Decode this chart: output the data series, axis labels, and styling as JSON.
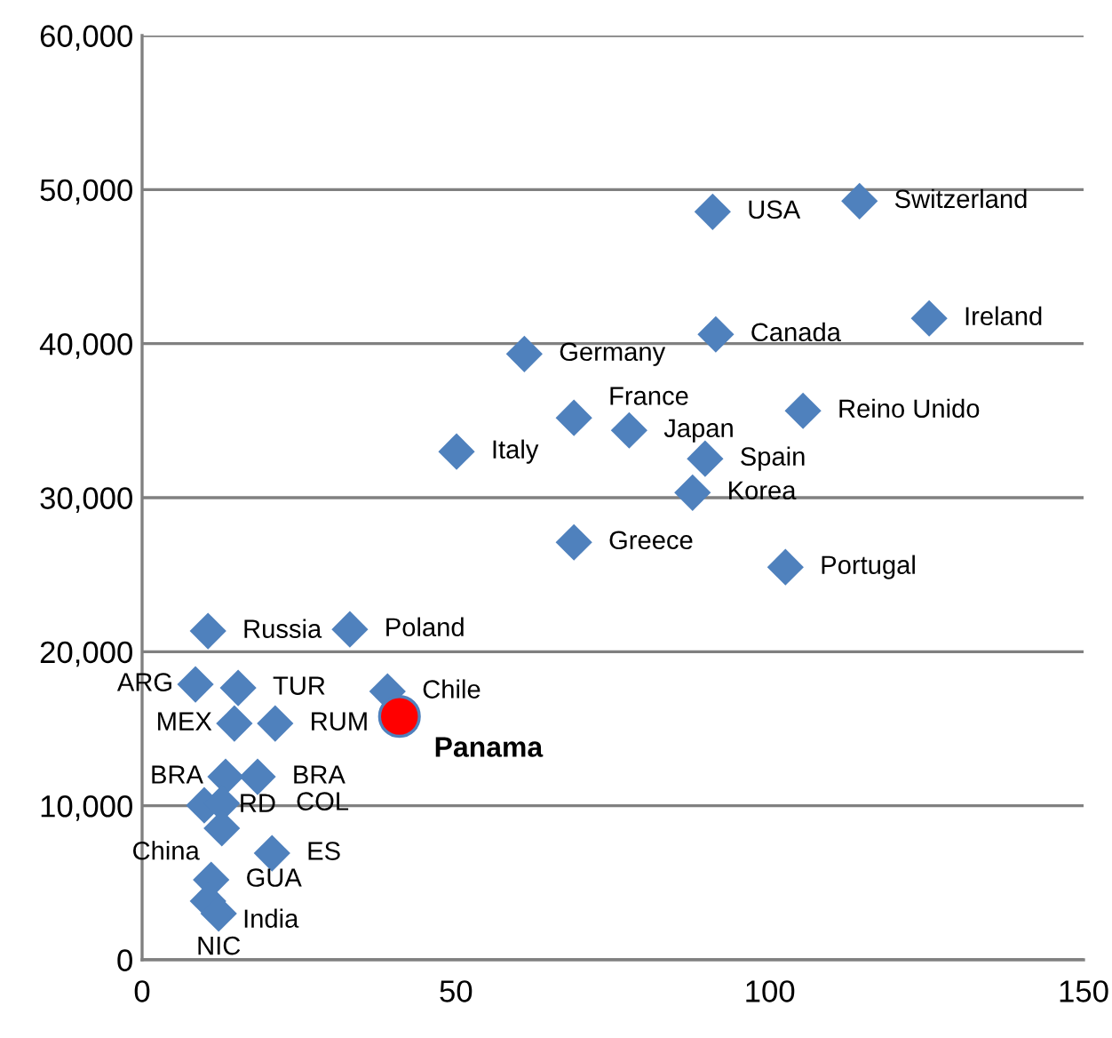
{
  "chart_data": {
    "type": "scatter",
    "xlim": [
      0,
      150
    ],
    "xticks": [
      0,
      50,
      100,
      150
    ],
    "ylim": [
      0,
      60000
    ],
    "yticks": [
      {
        "value": 0,
        "label": "0"
      },
      {
        "value": 10000,
        "label": "10,000"
      },
      {
        "value": 20000,
        "label": "20,000"
      },
      {
        "value": 30000,
        "label": "30,000"
      },
      {
        "value": 40000,
        "label": "40,000"
      },
      {
        "value": 50000,
        "label": "50,000"
      },
      {
        "value": 60000,
        "label": "60,000"
      }
    ],
    "grid": "y",
    "series": [
      {
        "color": "#4f81bd",
        "marker": "diamond",
        "x": [
          90.9,
          114.3,
          125.4,
          91.4,
          60.9,
          68.8,
          77.6,
          105.3,
          50.1,
          89.7,
          87.7,
          68.8,
          102.5,
          10.5,
          33.1,
          39.1,
          8.5,
          15.3,
          14.7,
          21.2,
          13.3,
          18.4,
          9.9,
          12.7,
          12.7,
          20.7,
          11.0,
          10.5,
          12.2
        ],
        "values": [
          48560,
          49250,
          41640,
          40600,
          39330,
          35180,
          34370,
          35640,
          32990,
          32530,
          30330,
          27100,
          25490,
          21340,
          21450,
          17420,
          17880,
          17650,
          15340,
          15340,
          11880,
          11880,
          10030,
          10150,
          8540,
          6920,
          5190,
          3810,
          3000
        ]
      },
      {
        "name": "Panama",
        "color": "#ff0000",
        "marker": "circle",
        "x": [
          41.0
        ],
        "values": [
          15800
        ]
      }
    ],
    "annotations": [
      {
        "text": "USA",
        "x": 90.9,
        "y": 48560
      },
      {
        "text": "Switzerland",
        "x": 114.3,
        "y": 49250
      },
      {
        "text": "Ireland",
        "x": 125.4,
        "y": 41640
      },
      {
        "text": "Canada",
        "x": 91.4,
        "y": 40600
      },
      {
        "text": "Germany",
        "x": 60.9,
        "y": 39330
      },
      {
        "text": "France",
        "x": 68.8,
        "y": 35180
      },
      {
        "text": "Japan",
        "x": 77.6,
        "y": 34370
      },
      {
        "text": "Reino Unido",
        "x": 105.3,
        "y": 35640
      },
      {
        "text": "Italy",
        "x": 50.1,
        "y": 32990
      },
      {
        "text": "Spain",
        "x": 89.7,
        "y": 32530
      },
      {
        "text": "Korea",
        "x": 87.7,
        "y": 30330
      },
      {
        "text": "Greece",
        "x": 68.8,
        "y": 27100
      },
      {
        "text": "Portugal",
        "x": 102.5,
        "y": 25490
      },
      {
        "text": "Russia",
        "x": 10.5,
        "y": 21340
      },
      {
        "text": "Poland",
        "x": 33.1,
        "y": 21450
      },
      {
        "text": "Chile",
        "x": 39.1,
        "y": 17420
      },
      {
        "text": "ARG",
        "x": 8.5,
        "y": 17880
      },
      {
        "text": "TUR",
        "x": 15.3,
        "y": 17650
      },
      {
        "text": "MEX",
        "x": 14.7,
        "y": 15340
      },
      {
        "text": "RUM",
        "x": 21.2,
        "y": 15340
      },
      {
        "text": "BRA",
        "x": 13.3,
        "y": 11880
      },
      {
        "text": "BRA",
        "x": 18.4,
        "y": 11880
      },
      {
        "text": "RD",
        "x": 9.9,
        "y": 10030
      },
      {
        "text": "COL",
        "x": 12.7,
        "y": 10150
      },
      {
        "text": "China",
        "x": 12.7,
        "y": 8540
      },
      {
        "text": "ES",
        "x": 20.7,
        "y": 6920
      },
      {
        "text": "GUA",
        "x": 11.0,
        "y": 5190
      },
      {
        "text": "India",
        "x": 10.5,
        "y": 3810
      },
      {
        "text": "NIC",
        "x": 12.2,
        "y": 3000
      }
    ]
  }
}
